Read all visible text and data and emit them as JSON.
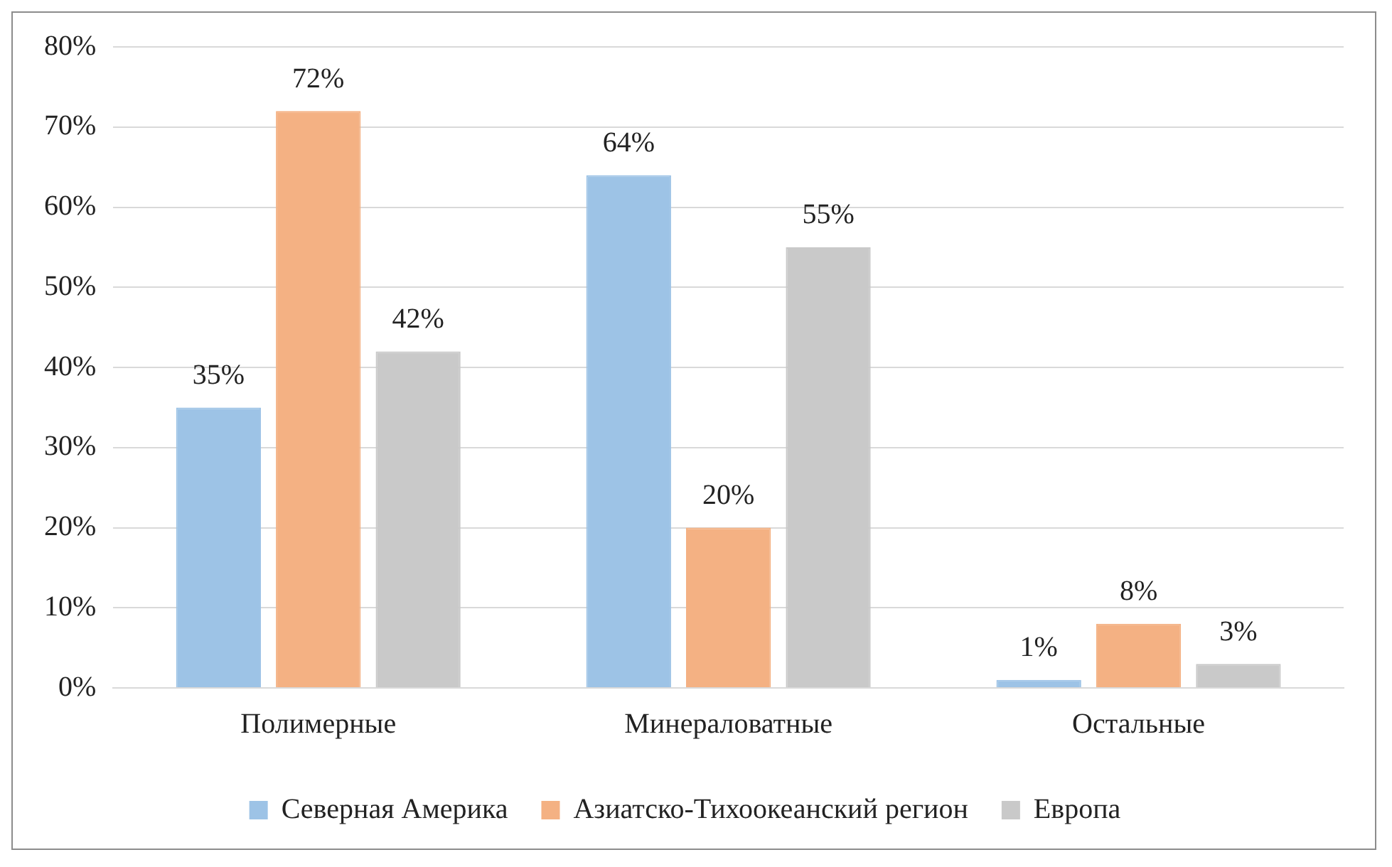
{
  "chart_data": {
    "type": "bar",
    "categories": [
      "Полимерные",
      "Минераловатные",
      "Остальные"
    ],
    "series": [
      {
        "name": "Северная Америка",
        "color": "#9dc3e6",
        "values": [
          35,
          64,
          1
        ],
        "value_labels": [
          "35%",
          "64%",
          "1%"
        ]
      },
      {
        "name": "Азиатско-Тихоокеанский регион",
        "color": "#f4b183",
        "values": [
          72,
          20,
          8
        ],
        "value_labels": [
          "72%",
          "20%",
          "8%"
        ]
      },
      {
        "name": "Европа",
        "color": "#c9c9c9",
        "values": [
          42,
          55,
          3
        ],
        "value_labels": [
          "42%",
          "55%",
          "3%"
        ]
      }
    ],
    "ylim": [
      0,
      80
    ],
    "yticks": [
      {
        "value": 0,
        "label": "0%"
      },
      {
        "value": 10,
        "label": "10%"
      },
      {
        "value": 20,
        "label": "20%"
      },
      {
        "value": 30,
        "label": "30%"
      },
      {
        "value": 40,
        "label": "40%"
      },
      {
        "value": 50,
        "label": "50%"
      },
      {
        "value": 60,
        "label": "60%"
      },
      {
        "value": 70,
        "label": "70%"
      },
      {
        "value": 80,
        "label": "80%"
      }
    ],
    "grid": "y",
    "legend": "bottom"
  }
}
